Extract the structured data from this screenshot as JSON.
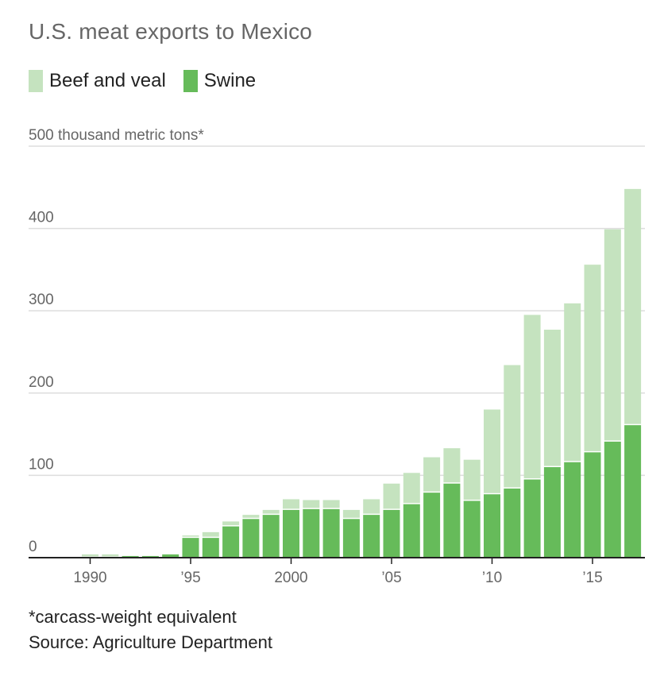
{
  "chart_data": {
    "type": "bar",
    "stacked": true,
    "title": "U.S. meat exports to Mexico",
    "unit_label": "500 thousand metric tons*",
    "ylim": [
      0,
      500
    ],
    "y_ticks": [
      0,
      100,
      200,
      300,
      400
    ],
    "x_tick_labels": [
      {
        "year": 1990,
        "label": "1990"
      },
      {
        "year": 1995,
        "label": "’95"
      },
      {
        "year": 2000,
        "label": "2000"
      },
      {
        "year": 2005,
        "label": "’05"
      },
      {
        "year": 2010,
        "label": "’10"
      },
      {
        "year": 2015,
        "label": "’15"
      }
    ],
    "x": [
      1990,
      1991,
      1992,
      1993,
      1994,
      1995,
      1996,
      1997,
      1998,
      1999,
      2000,
      2001,
      2002,
      2003,
      2004,
      2005,
      2006,
      2007,
      2008,
      2009,
      2010,
      2011,
      2012,
      2013,
      2014,
      2015,
      2016,
      2017
    ],
    "series": [
      {
        "name": "Swine",
        "color": "#66bb5a",
        "values": [
          0,
          0,
          2,
          2,
          4,
          24,
          24,
          38,
          47,
          52,
          58,
          59,
          59,
          47,
          52,
          58,
          65,
          79,
          90,
          69,
          77,
          84,
          95,
          110,
          116,
          128,
          141,
          161
        ]
      },
      {
        "name": "Beef and veal",
        "color": "#c5e3bf",
        "values": [
          4,
          4,
          1,
          1,
          1,
          3,
          7,
          6,
          5,
          6,
          13,
          11,
          11,
          11,
          19,
          32,
          38,
          43,
          43,
          50,
          103,
          150,
          200,
          167,
          193,
          228,
          258,
          287
        ]
      }
    ],
    "legend": [
      {
        "name": "Beef and veal",
        "color": "#c5e3bf"
      },
      {
        "name": "Swine",
        "color": "#66bb5a"
      }
    ],
    "grid": true,
    "legend_position": "top-left"
  },
  "footnote": "*carcass-weight equivalent",
  "source": "Source: Agriculture Department"
}
